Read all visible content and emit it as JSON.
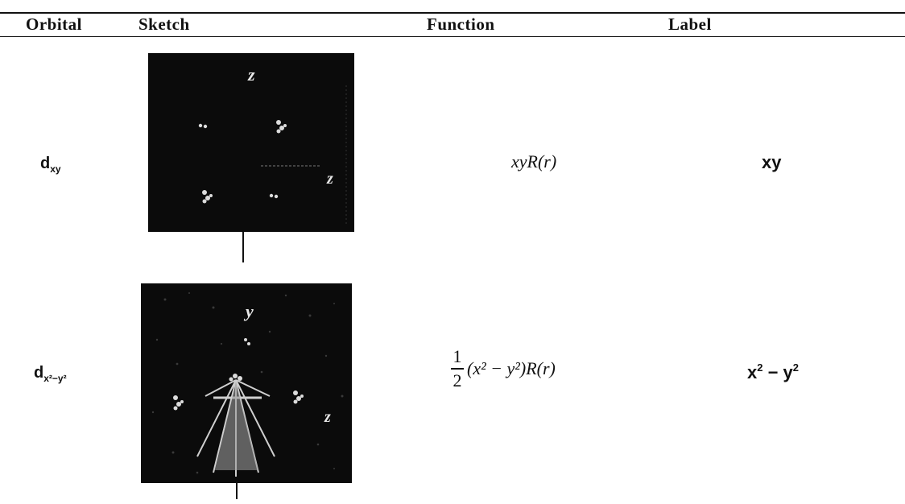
{
  "table": {
    "headers": {
      "orbital": "Orbital",
      "sketch": "Sketch",
      "function": "Function",
      "label": "Label"
    },
    "rows": [
      {
        "orbital_main": "d",
        "orbital_sub": "xy",
        "sketch_axis_labels": [
          "z",
          "z"
        ],
        "function_text": "xyR(r)",
        "label_main": "xy"
      },
      {
        "orbital_main": "d",
        "orbital_sub": "x²−y²",
        "sketch_axis_labels": [
          "y",
          "z"
        ],
        "function_num": "1",
        "function_den": "2",
        "function_text": "(x² − y²)R(r)",
        "label_main": "x",
        "label_sup1": "2",
        "label_mid": " − y",
        "label_sup2": "2"
      }
    ]
  },
  "colors": {
    "sketch_background": "#0b0b0b",
    "rule": "#111111"
  }
}
